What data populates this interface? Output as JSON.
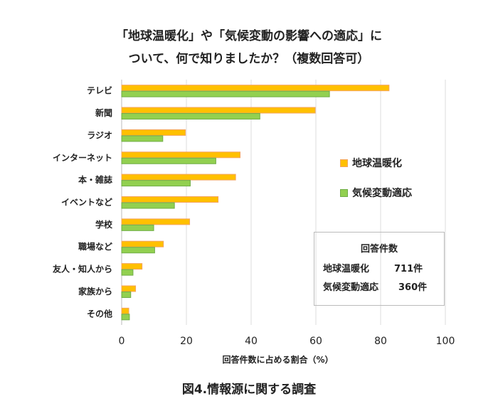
{
  "chart_data": {
    "type": "bar",
    "orientation": "horizontal",
    "title": [
      "「地球温暖化」や「気候変動の影響への適応」に",
      "ついて、何で知りましたか？（複数回答可）"
    ],
    "categories": [
      "テレビ",
      "新聞",
      "ラジオ",
      "インターネット",
      "本・雑誌",
      "イベントなど",
      "学校",
      "職場など",
      "友人・知人から",
      "家族から",
      "その他"
    ],
    "series": [
      {
        "name": "地球温暖化",
        "color": "#FFC000",
        "values": [
          82.6,
          59.8,
          19.7,
          36.6,
          35.2,
          29.8,
          21.0,
          12.9,
          6.3,
          4.3,
          2.2
        ]
      },
      {
        "name": "気候変動適応",
        "color": "#92D050",
        "values": [
          64.2,
          42.7,
          12.7,
          29.1,
          21.2,
          16.3,
          9.9,
          10.2,
          3.5,
          2.8,
          2.4
        ]
      }
    ],
    "xlabel": "回答件数に占める割合（%）",
    "xlim": [
      0,
      100
    ],
    "xticks": [
      "0",
      "20",
      "40",
      "60",
      "80",
      "100"
    ],
    "grid": true,
    "legend": "right"
  },
  "responses": {
    "title": "回答件数",
    "rows": [
      {
        "label": "地球温暖化",
        "value": "711件"
      },
      {
        "label": "気候変動適応",
        "value": "360件"
      }
    ]
  },
  "caption": "図4.情報源に関する調査"
}
